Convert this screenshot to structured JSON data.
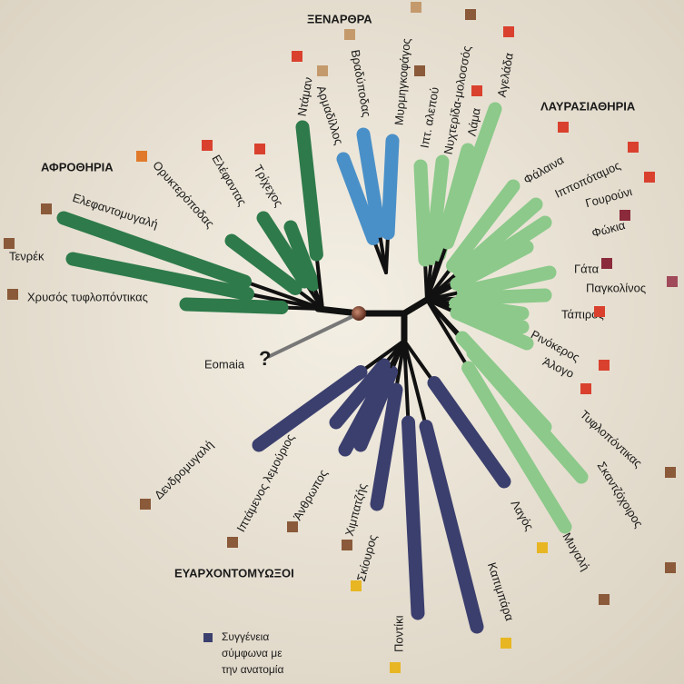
{
  "groups": [
    "ΞΕΝΑΡΘΡΑ",
    "ΛΑΥΡΑΣΙΑΘΗΡΙΑ",
    "ΑΦΡΟΘΗΡΙΑ",
    "ΕΥΑΡΧΟΝΤΟΜΥΩΞΟΙ"
  ],
  "leaves": [
    "Ελεφαντομυγαλή",
    "Τενρέκ",
    "Χρυσός τυφλοπόντικας",
    "Ορυκτερόποδας",
    "Ελέφαντας",
    "Τρίχεχος",
    "Ντάμαν",
    "Αρμαδίλλος",
    "Βραδύποδας",
    "Μυρμηγκοφάγος",
    "Ιπτ. αλεπού",
    "Νυχτερίδα-μολοσσός",
    "Λάμα",
    "Αγελάδα",
    "Φάλαινα",
    "Ιπποπόταμος",
    "Γουρούνι",
    "Φώκια",
    "Γάτα",
    "Παγκολίνος",
    "Τάπιρος",
    "Ρινόκερος",
    "Άλογο",
    "Τυφλοπόντικας",
    "Σκαντζόχοιρος",
    "Μυγαλή",
    "Λαγός",
    "Καπιμπάρα",
    "Ποντίκι",
    "Σκίουρος",
    "Χιμπατζής",
    "Άνθρωπος",
    "Ιπτάμενος λεμούριος",
    "Δενδρομυγαλή"
  ],
  "eomaia": {
    "label": "Eomaia",
    "mark": "?"
  },
  "legend": [
    "Συγγένεια",
    "σύμφωνα με",
    "την ανατομία"
  ]
}
